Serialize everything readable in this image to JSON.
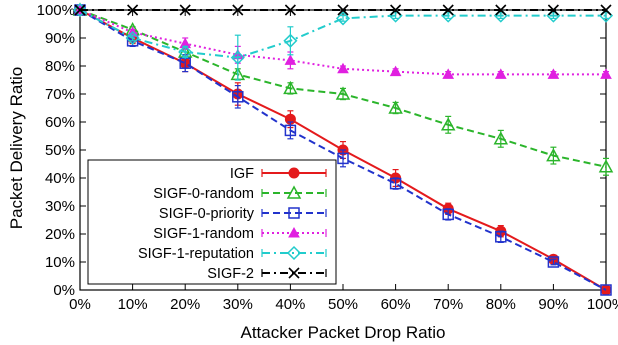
{
  "chart_data": {
    "type": "line",
    "title": "",
    "xlabel": "Attacker Packet Drop Ratio",
    "ylabel": "Packet Delivery Ratio",
    "x": [
      0,
      10,
      20,
      30,
      40,
      50,
      60,
      70,
      80,
      90,
      100
    ],
    "x_tick_labels": [
      "0%",
      "10%",
      "20%",
      "30%",
      "40%",
      "50%",
      "60%",
      "70%",
      "80%",
      "90%",
      "100%"
    ],
    "y_tick_labels": [
      "0%",
      "10%",
      "20%",
      "30%",
      "40%",
      "50%",
      "60%",
      "70%",
      "80%",
      "90%",
      "100%"
    ],
    "xlim": [
      0,
      100
    ],
    "ylim": [
      0,
      100
    ],
    "grid": false,
    "legend_position": "bottom-left",
    "series": [
      {
        "name": "IGF",
        "color": "#e41a1c",
        "marker": "filled-circle",
        "line_style": "solid",
        "values": [
          100,
          90,
          81,
          70,
          61,
          50,
          40,
          29,
          21,
          11,
          0
        ],
        "errors": [
          0,
          2,
          3,
          4,
          3,
          3,
          3,
          2,
          2,
          1,
          0
        ]
      },
      {
        "name": "SIGF-0-random",
        "color": "#2bb52b",
        "marker": "open-triangle",
        "line_style": "dashed",
        "values": [
          100,
          93,
          85,
          77,
          72,
          70,
          65,
          59,
          54,
          48,
          44
        ],
        "errors": [
          0,
          1,
          2,
          2,
          2,
          2,
          2,
          3,
          3,
          3,
          3
        ]
      },
      {
        "name": "SIGF-0-priority",
        "color": "#2233cc",
        "marker": "open-square",
        "line_style": "dashed",
        "values": [
          100,
          89,
          81,
          69,
          57,
          47,
          38,
          27,
          19,
          10,
          0
        ],
        "errors": [
          0,
          2,
          3,
          4,
          3,
          3,
          2,
          2,
          2,
          1,
          0
        ]
      },
      {
        "name": "SIGF-1-random",
        "color": "#e020e0",
        "marker": "filled-triangle",
        "line_style": "dotted",
        "values": [
          100,
          92,
          88,
          84,
          82,
          79,
          78,
          77,
          77,
          77,
          77
        ],
        "errors": [
          0,
          1,
          2,
          3,
          3,
          1,
          1,
          1,
          1,
          1,
          1
        ]
      },
      {
        "name": "SIGF-1-reputation",
        "color": "#22cccc",
        "marker": "open-diamond",
        "line_style": "dash-dot",
        "values": [
          100,
          90,
          85,
          83,
          89,
          97,
          98,
          98,
          98,
          98,
          98
        ],
        "errors": [
          0,
          1,
          2,
          8,
          5,
          1,
          1,
          1,
          1,
          1,
          1
        ]
      },
      {
        "name": "SIGF-2",
        "color": "#000000",
        "marker": "x",
        "line_style": "dash-dot",
        "values": [
          100,
          100,
          100,
          100,
          100,
          100,
          100,
          100,
          100,
          100,
          100
        ],
        "errors": [
          0,
          0,
          0,
          0,
          0,
          0,
          0,
          0,
          0,
          0,
          0
        ]
      }
    ]
  }
}
